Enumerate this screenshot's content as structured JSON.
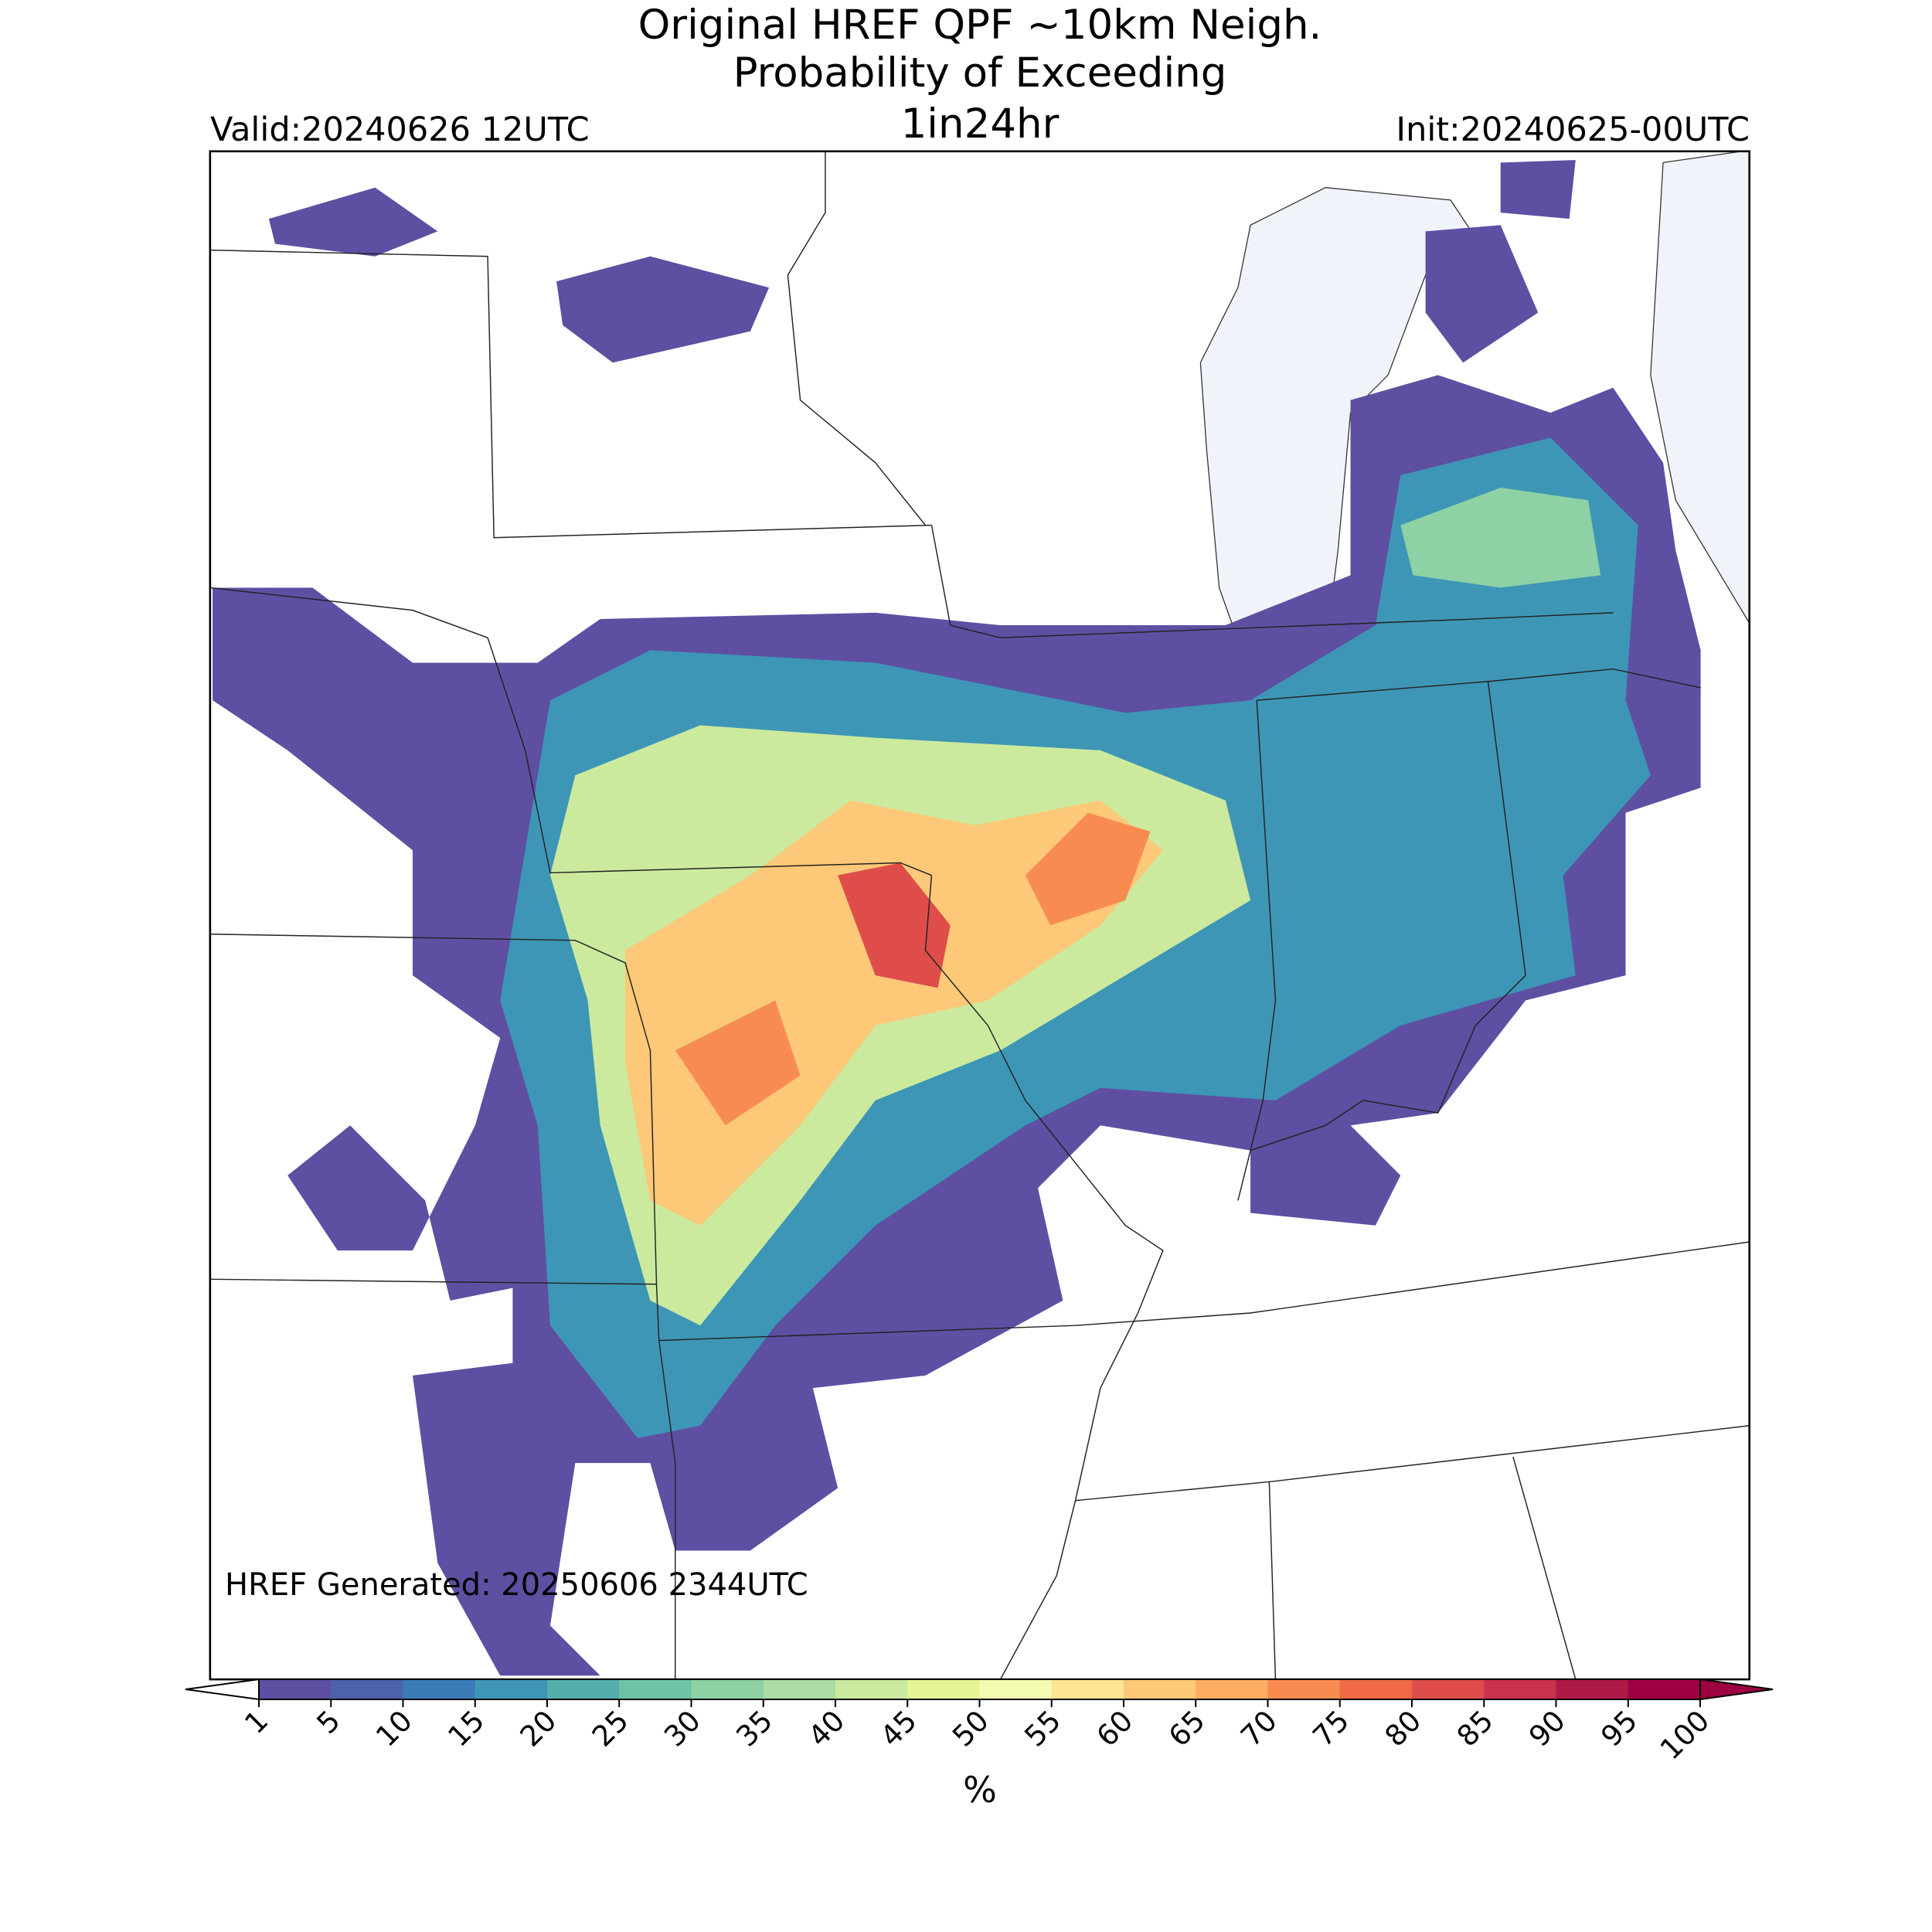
{
  "header": {
    "title_lines": [
      "Original HREF QPF ~10km Neigh.",
      "Probability of Exceeding",
      "1in24hr"
    ],
    "valid": "Valid:20240626 12UTC",
    "init": "Init:20240625-00UTC"
  },
  "map": {
    "generated": "HREF Generated: 20250606 2344UTC",
    "lake_color": "#f0f4fa"
  },
  "colorbar": {
    "label": "%",
    "ticks": [
      1,
      5,
      10,
      15,
      20,
      25,
      30,
      35,
      40,
      45,
      50,
      55,
      60,
      65,
      70,
      75,
      80,
      85,
      90,
      95,
      100
    ],
    "colors": [
      "#5e4fa2",
      "#4e62ab",
      "#3b7cb8",
      "#3e96b6",
      "#54aeac",
      "#6dc3a5",
      "#8dd1a4",
      "#abdda4",
      "#cbea9e",
      "#e6f598",
      "#f6fbb2",
      "#fee593",
      "#fdc878",
      "#fdac61",
      "#f88c50",
      "#ef6a45",
      "#de4d4a",
      "#c9324f",
      "#ad1a47",
      "#9e0142"
    ],
    "extend_min_color": "#ffffff",
    "extend_max_color": "#9e0142"
  }
}
